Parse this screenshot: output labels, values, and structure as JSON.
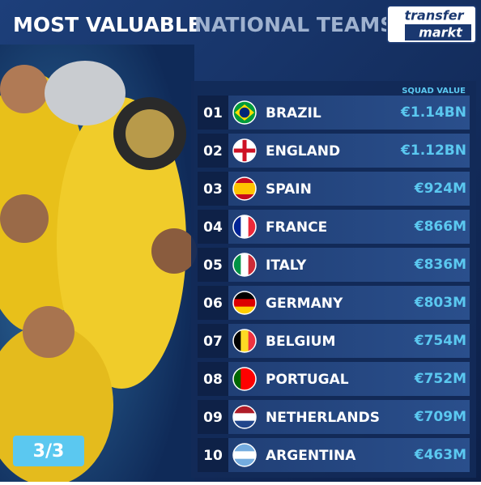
{
  "header": {
    "title_part1": "MOST VALUABLE",
    "title_part2": "NATIONAL TEAMS",
    "logo_line1": "transfer",
    "logo_line2": "markt"
  },
  "table": {
    "column_header": "SQUAD VALUE",
    "rows": [
      [
        "01",
        "BRAZIL",
        "€1.14BN"
      ],
      [
        "02",
        "ENGLAND",
        "€1.12BN"
      ],
      [
        "03",
        "SPAIN",
        "€924M"
      ],
      [
        "04",
        "FRANCE",
        "€866M"
      ],
      [
        "05",
        "ITALY",
        "€836M"
      ],
      [
        "06",
        "GERMANY",
        "€803M"
      ],
      [
        "07",
        "BELGIUM",
        "€754M"
      ],
      [
        "08",
        "PORTUGAL",
        "€752M"
      ],
      [
        "09",
        "NETHERLANDS",
        "€709M"
      ],
      [
        "10",
        "ARGENTINA",
        "€463M"
      ]
    ]
  },
  "page_indicator": "3/3"
}
